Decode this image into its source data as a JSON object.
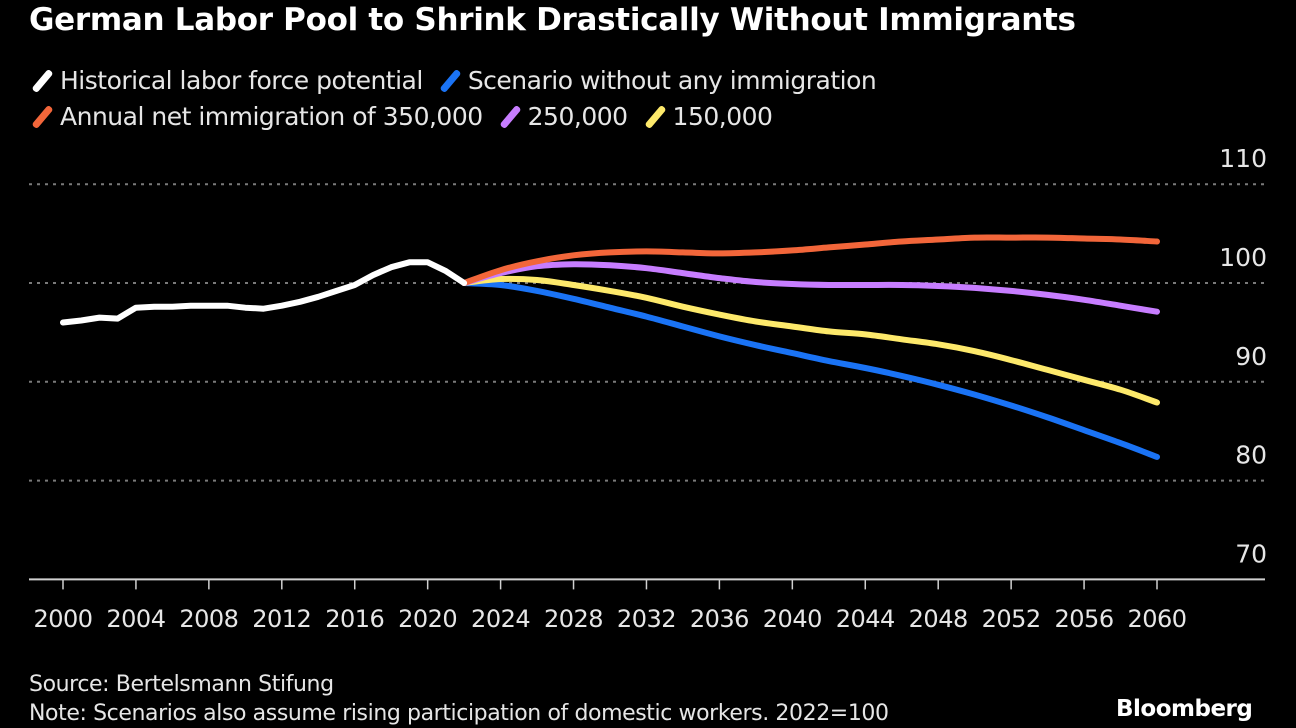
{
  "chart_data": {
    "type": "line",
    "title": "German Labor Pool to Shrink Drastically Without Immigrants",
    "xlabel": "",
    "ylabel": "",
    "xlim": [
      2000,
      2060
    ],
    "ylim": [
      70,
      110
    ],
    "x_ticks": [
      "2000",
      "2004",
      "2008",
      "2012",
      "2016",
      "2020",
      "2024",
      "2028",
      "2032",
      "2036",
      "2040",
      "2044",
      "2048",
      "2052",
      "2056",
      "2060"
    ],
    "y_ticks": [
      "70",
      "80",
      "90",
      "100",
      "110"
    ],
    "grid": "horizontal dotted",
    "legend_position": "top-left",
    "series": [
      {
        "name": "Historical labor force potential",
        "color": "#ffffff",
        "x": [
          2000,
          2001,
          2002,
          2003,
          2004,
          2005,
          2006,
          2007,
          2008,
          2009,
          2010,
          2011,
          2012,
          2013,
          2014,
          2015,
          2016,
          2017,
          2018,
          2019,
          2020,
          2021,
          2022
        ],
        "values": [
          96.0,
          96.2,
          96.5,
          96.4,
          97.5,
          97.6,
          97.6,
          97.7,
          97.7,
          97.7,
          97.5,
          97.4,
          97.7,
          98.1,
          98.6,
          99.2,
          99.8,
          100.8,
          101.6,
          102.1,
          102.1,
          101.2,
          100.0
        ]
      },
      {
        "name": "Scenario without any immigration",
        "color": "#1a73f5",
        "x": [
          2022,
          2024,
          2026,
          2028,
          2030,
          2032,
          2034,
          2036,
          2038,
          2040,
          2042,
          2044,
          2046,
          2048,
          2050,
          2052,
          2054,
          2056,
          2058,
          2060
        ],
        "values": [
          100.0,
          99.8,
          99.2,
          98.4,
          97.5,
          96.6,
          95.6,
          94.6,
          93.7,
          92.9,
          92.1,
          91.4,
          90.6,
          89.7,
          88.7,
          87.6,
          86.4,
          85.1,
          83.8,
          82.4
        ]
      },
      {
        "name": "Annual net immigration of 350,000",
        "color": "#f2663a",
        "x": [
          2022,
          2024,
          2026,
          2028,
          2030,
          2032,
          2034,
          2036,
          2038,
          2040,
          2042,
          2044,
          2046,
          2048,
          2050,
          2052,
          2054,
          2056,
          2058,
          2060
        ],
        "values": [
          100.0,
          101.3,
          102.2,
          102.8,
          103.1,
          103.2,
          103.1,
          103.0,
          103.1,
          103.3,
          103.6,
          103.9,
          104.2,
          104.4,
          104.6,
          104.6,
          104.6,
          104.5,
          104.4,
          104.2
        ]
      },
      {
        "name": "250,000",
        "color": "#c77dff",
        "x": [
          2022,
          2024,
          2026,
          2028,
          2030,
          2032,
          2034,
          2036,
          2038,
          2040,
          2042,
          2044,
          2046,
          2048,
          2050,
          2052,
          2054,
          2056,
          2058,
          2060
        ],
        "values": [
          100.0,
          101.0,
          101.7,
          101.9,
          101.8,
          101.5,
          101.0,
          100.5,
          100.1,
          99.9,
          99.8,
          99.8,
          99.8,
          99.7,
          99.5,
          99.2,
          98.8,
          98.3,
          97.7,
          97.1
        ]
      },
      {
        "name": "150,000",
        "color": "#fde96b",
        "x": [
          2022,
          2024,
          2026,
          2028,
          2030,
          2032,
          2034,
          2036,
          2038,
          2040,
          2042,
          2044,
          2046,
          2048,
          2050,
          2052,
          2054,
          2056,
          2058,
          2060
        ],
        "values": [
          100.0,
          100.4,
          100.3,
          99.8,
          99.2,
          98.5,
          97.6,
          96.8,
          96.1,
          95.6,
          95.1,
          94.8,
          94.3,
          93.8,
          93.1,
          92.2,
          91.2,
          90.2,
          89.2,
          87.9
        ]
      }
    ]
  },
  "legend": {
    "row1": [
      {
        "label": "Historical labor force potential",
        "color": "#ffffff"
      },
      {
        "label": "Scenario without any immigration",
        "color": "#1a73f5"
      }
    ],
    "row2": [
      {
        "label": "Annual net immigration of 350,000",
        "color": "#f2663a"
      },
      {
        "label": "250,000",
        "color": "#c77dff"
      },
      {
        "label": "150,000",
        "color": "#fde96b"
      }
    ]
  },
  "footer": {
    "source": "Source: Bertelsmann Stifung",
    "note": "Note: Scenarios also assume rising participation of domestic workers. 2022=100",
    "brand": "Bloomberg"
  }
}
